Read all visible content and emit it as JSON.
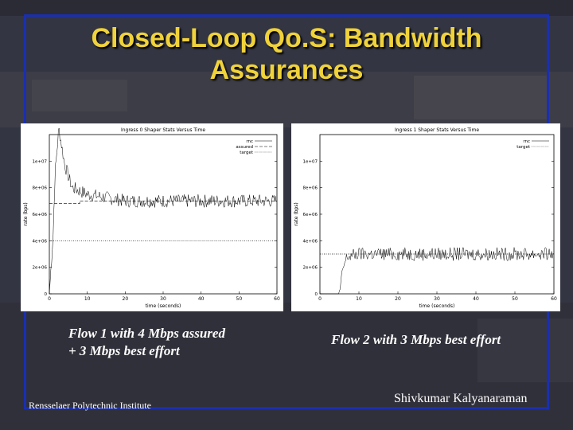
{
  "slide": {
    "title_line1": "Closed-Loop Qo.S: Bandwidth",
    "title_line2": "Assurances",
    "captions": [
      {
        "line1": "Flow 1 with 4 Mbps assured",
        "line2": "+ 3 Mbps best effort"
      },
      {
        "line1": "Flow 2 with 3 Mbps best effort"
      }
    ],
    "footer_left": "Rensselaer Polytechnic Institute",
    "footer_right": "Shivkumar Kalyanaraman",
    "colors": {
      "title": "#f0d23a",
      "frame": "#1a2fb0",
      "caption": "#ffffff"
    }
  },
  "chart_data": [
    {
      "type": "line",
      "title": "Ingress 0 Shaper Stats Versus Time",
      "xlabel": "time (seconds)",
      "ylabel": "rate (bps)",
      "xlim": [
        0,
        60
      ],
      "ylim": [
        0,
        12000000
      ],
      "x_ticks": [
        "0",
        "10",
        "20",
        "30",
        "40",
        "50",
        "60"
      ],
      "y_ticks": [
        "0",
        "2e+06",
        "4e+06",
        "6e+06",
        "8e+06",
        "1e+07"
      ],
      "legend_position": "top-right",
      "series": [
        {
          "name": "rnc",
          "style": "solid",
          "points": [
            [
              0,
              0
            ],
            [
              1,
              4500000
            ],
            [
              1.5,
              9000000
            ],
            [
              2.5,
              12500000
            ],
            [
              4,
              9800000
            ],
            [
              6,
              8000000
            ],
            [
              10,
              7500000
            ],
            [
              20,
              7000000
            ],
            [
              40,
              7000000
            ],
            [
              60,
              7000000
            ]
          ]
        },
        {
          "name": "assured",
          "style": "dashed",
          "points": [
            [
              0,
              6800000
            ],
            [
              8,
              6800000
            ],
            [
              8,
              7000000
            ],
            [
              60,
              7000000
            ]
          ]
        },
        {
          "name": "target",
          "style": "dotted",
          "points": [
            [
              0,
              4000000
            ],
            [
              60,
              4000000
            ]
          ]
        }
      ]
    },
    {
      "type": "line",
      "title": "Ingress 1 Shaper Stats Versus Time",
      "xlabel": "time (seconds)",
      "ylabel": "rate (bps)",
      "xlim": [
        0,
        60
      ],
      "ylim": [
        0,
        12000000
      ],
      "x_ticks": [
        "0",
        "10",
        "20",
        "30",
        "40",
        "50",
        "60"
      ],
      "y_ticks": [
        "0",
        "2e+06",
        "4e+06",
        "6e+06",
        "8e+06",
        "1e+07"
      ],
      "legend_position": "top-right",
      "series": [
        {
          "name": "rnc",
          "style": "solid",
          "points": [
            [
              0,
              0
            ],
            [
              5,
              0
            ],
            [
              6,
              2000000
            ],
            [
              7,
              2800000
            ],
            [
              10,
              3000000
            ],
            [
              30,
              3000000
            ],
            [
              60,
              3000000
            ]
          ]
        },
        {
          "name": "target",
          "style": "dotted",
          "points": [
            [
              0,
              3000000
            ],
            [
              60,
              3000000
            ]
          ]
        }
      ]
    }
  ]
}
